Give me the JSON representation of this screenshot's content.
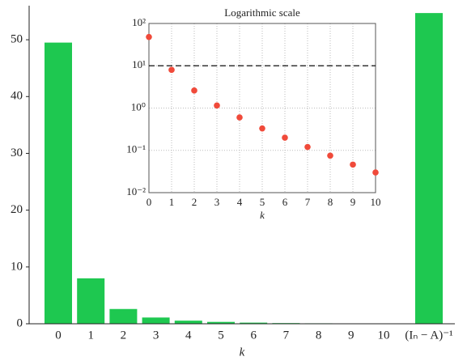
{
  "chart_data": [
    {
      "type": "bar",
      "xlabel": "k",
      "categories": [
        "0",
        "1",
        "2",
        "3",
        "4",
        "5",
        "6",
        "7",
        "8",
        "9",
        "10",
        "(Iₙ − A)⁻¹"
      ],
      "values": [
        49.5,
        8.0,
        2.6,
        1.1,
        0.55,
        0.33,
        0.2,
        0.12,
        0.08,
        0.05,
        0.03,
        54.7
      ],
      "color": "#1ec850",
      "ylim": [
        0,
        56
      ],
      "yticks": [
        0,
        10,
        20,
        30,
        40,
        50
      ]
    },
    {
      "type": "scatter",
      "title": "Logarithmic scale",
      "xlabel": "k",
      "log_y": true,
      "grid": true,
      "x": [
        0,
        1,
        2,
        3,
        4,
        5,
        6,
        7,
        8,
        9,
        10
      ],
      "values": [
        48,
        8,
        2.6,
        1.15,
        0.6,
        0.33,
        0.2,
        0.12,
        0.075,
        0.046,
        0.03
      ],
      "color": "#f04a3a",
      "hline": 10,
      "xlim": [
        0,
        10
      ],
      "xticks": [
        0,
        1,
        2,
        3,
        4,
        5,
        6,
        7,
        8,
        9,
        10
      ],
      "ylim": [
        0.01,
        100
      ],
      "yticks": [
        {
          "value": 0.01,
          "label": "10⁻²"
        },
        {
          "value": 0.1,
          "label": "10⁻¹"
        },
        {
          "value": 1,
          "label": "10⁰"
        },
        {
          "value": 10,
          "label": "10¹"
        },
        {
          "value": 100,
          "label": "10²"
        }
      ]
    }
  ]
}
